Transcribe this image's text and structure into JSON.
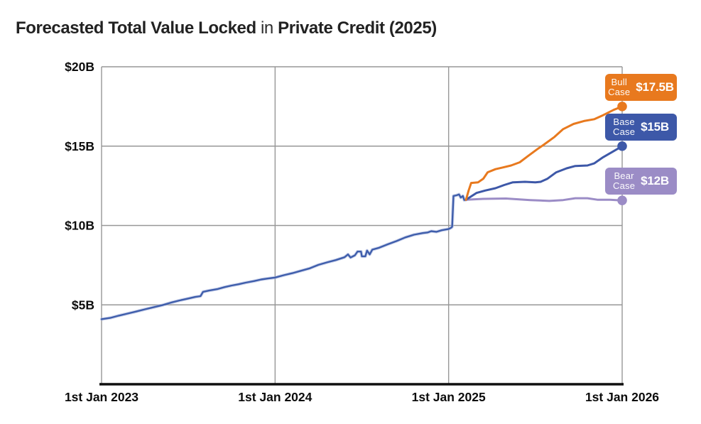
{
  "header": {
    "title_bold_1": "Forecasted Total Value Locked",
    "title_regular": " in ",
    "title_bold_2": "Private Credit (2025)"
  },
  "chart_data": {
    "type": "line",
    "title": "Forecasted Total Value Locked in Private Credit (2025)",
    "xlabel": "",
    "ylabel": "",
    "x_range": [
      2023,
      2026
    ],
    "y_range": [
      0,
      20
    ],
    "grid": true,
    "grid_color": "#979797",
    "axis_color": "#0f0f0f",
    "legend_position": "right-inline-badges",
    "x_ticks": [
      {
        "value": 2023,
        "label": "1st Jan 2023"
      },
      {
        "value": 2024,
        "label": "1st Jan 2024"
      },
      {
        "value": 2025,
        "label": "1st Jan 2025"
      },
      {
        "value": 2026,
        "label": "1st Jan 2026"
      }
    ],
    "y_ticks": [
      {
        "value": 5,
        "label": "$5B"
      },
      {
        "value": 10,
        "label": "$10B"
      },
      {
        "value": 15,
        "label": "$15B"
      },
      {
        "value": 20,
        "label": "$20B"
      }
    ],
    "series": [
      {
        "name": "Historical TVL",
        "color": "#3E5DAB",
        "halo_color": "#A9B7DF",
        "width": 2.4,
        "end_dot": false,
        "points": [
          [
            2023.0,
            4.1
          ],
          [
            2023.05,
            4.18
          ],
          [
            2023.1,
            4.32
          ],
          [
            2023.15,
            4.45
          ],
          [
            2023.2,
            4.58
          ],
          [
            2023.25,
            4.72
          ],
          [
            2023.3,
            4.85
          ],
          [
            2023.35,
            4.98
          ],
          [
            2023.4,
            5.14
          ],
          [
            2023.45,
            5.28
          ],
          [
            2023.5,
            5.4
          ],
          [
            2023.54,
            5.5
          ],
          [
            2023.57,
            5.55
          ],
          [
            2023.585,
            5.82
          ],
          [
            2023.62,
            5.9
          ],
          [
            2023.67,
            6.0
          ],
          [
            2023.71,
            6.12
          ],
          [
            2023.75,
            6.22
          ],
          [
            2023.79,
            6.3
          ],
          [
            2023.83,
            6.4
          ],
          [
            2023.88,
            6.5
          ],
          [
            2023.92,
            6.6
          ],
          [
            2023.96,
            6.66
          ],
          [
            2024.0,
            6.72
          ],
          [
            2024.05,
            6.87
          ],
          [
            2024.1,
            7.0
          ],
          [
            2024.15,
            7.15
          ],
          [
            2024.2,
            7.3
          ],
          [
            2024.25,
            7.52
          ],
          [
            2024.3,
            7.68
          ],
          [
            2024.35,
            7.82
          ],
          [
            2024.4,
            8.0
          ],
          [
            2024.42,
            8.18
          ],
          [
            2024.435,
            7.98
          ],
          [
            2024.46,
            8.12
          ],
          [
            2024.475,
            8.36
          ],
          [
            2024.495,
            8.36
          ],
          [
            2024.5,
            8.06
          ],
          [
            2024.52,
            8.06
          ],
          [
            2024.53,
            8.42
          ],
          [
            2024.545,
            8.18
          ],
          [
            2024.56,
            8.48
          ],
          [
            2024.6,
            8.6
          ],
          [
            2024.65,
            8.82
          ],
          [
            2024.7,
            9.02
          ],
          [
            2024.75,
            9.25
          ],
          [
            2024.8,
            9.42
          ],
          [
            2024.85,
            9.52
          ],
          [
            2024.88,
            9.56
          ],
          [
            2024.9,
            9.64
          ],
          [
            2024.93,
            9.6
          ],
          [
            2024.96,
            9.7
          ],
          [
            2025.0,
            9.78
          ],
          [
            2025.015,
            9.86
          ],
          [
            2025.02,
            9.92
          ],
          [
            2025.028,
            11.86
          ],
          [
            2025.045,
            11.9
          ],
          [
            2025.06,
            11.96
          ],
          [
            2025.07,
            11.76
          ],
          [
            2025.082,
            11.86
          ],
          [
            2025.09,
            11.6
          ],
          [
            2025.1,
            11.62
          ]
        ]
      },
      {
        "name": "Bear Case",
        "color": "#9B8CC6",
        "width": 3,
        "end_dot": true,
        "badge": {
          "line1": "Bear",
          "line2": "Case",
          "value": "$12B"
        },
        "points": [
          [
            2025.1,
            11.62
          ],
          [
            2025.2,
            11.68
          ],
          [
            2025.33,
            11.7
          ],
          [
            2025.47,
            11.6
          ],
          [
            2025.58,
            11.55
          ],
          [
            2025.66,
            11.6
          ],
          [
            2025.73,
            11.72
          ],
          [
            2025.8,
            11.72
          ],
          [
            2025.86,
            11.62
          ],
          [
            2025.93,
            11.62
          ],
          [
            2026.0,
            11.58
          ]
        ]
      },
      {
        "name": "Base Case",
        "color": "#3D58A8",
        "width": 3,
        "end_dot": true,
        "badge": {
          "line1": "Base",
          "line2": "Case",
          "value": "$15B"
        },
        "points": [
          [
            2025.1,
            11.62
          ],
          [
            2025.16,
            12.05
          ],
          [
            2025.21,
            12.2
          ],
          [
            2025.27,
            12.35
          ],
          [
            2025.32,
            12.55
          ],
          [
            2025.37,
            12.72
          ],
          [
            2025.44,
            12.75
          ],
          [
            2025.5,
            12.72
          ],
          [
            2025.53,
            12.75
          ],
          [
            2025.57,
            12.95
          ],
          [
            2025.62,
            13.35
          ],
          [
            2025.68,
            13.6
          ],
          [
            2025.73,
            13.75
          ],
          [
            2025.8,
            13.78
          ],
          [
            2025.84,
            13.92
          ],
          [
            2025.89,
            14.3
          ],
          [
            2025.95,
            14.68
          ],
          [
            2026.0,
            15.0
          ]
        ]
      },
      {
        "name": "Bull Case",
        "color": "#E8791E",
        "width": 3,
        "end_dot": true,
        "badge": {
          "line1": "Bull",
          "line2": "Case",
          "value": "$17.5B"
        },
        "points": [
          [
            2025.1,
            11.62
          ],
          [
            2025.115,
            12.2
          ],
          [
            2025.13,
            12.68
          ],
          [
            2025.17,
            12.72
          ],
          [
            2025.2,
            12.95
          ],
          [
            2025.225,
            13.35
          ],
          [
            2025.27,
            13.55
          ],
          [
            2025.31,
            13.65
          ],
          [
            2025.36,
            13.78
          ],
          [
            2025.41,
            13.98
          ],
          [
            2025.46,
            14.4
          ],
          [
            2025.51,
            14.8
          ],
          [
            2025.55,
            15.1
          ],
          [
            2025.61,
            15.58
          ],
          [
            2025.66,
            16.07
          ],
          [
            2025.72,
            16.4
          ],
          [
            2025.78,
            16.58
          ],
          [
            2025.84,
            16.7
          ],
          [
            2025.89,
            16.95
          ],
          [
            2025.95,
            17.28
          ],
          [
            2026.0,
            17.5
          ]
        ]
      }
    ]
  }
}
